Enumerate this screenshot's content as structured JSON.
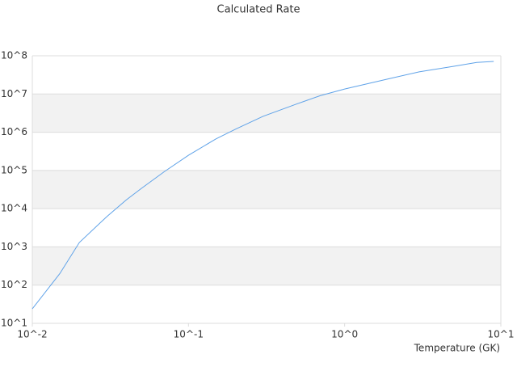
{
  "chart_data": {
    "type": "line",
    "title": "Calculated Rate",
    "x_label": "Temperature (GK)",
    "x": [
      0.01,
      0.015,
      0.02,
      0.03,
      0.04,
      0.05,
      0.07,
      0.1,
      0.15,
      0.2,
      0.3,
      0.5,
      0.7,
      1,
      2,
      3,
      5,
      7,
      9
    ],
    "series": [
      {
        "color": "#5fa2e8",
        "values": [
          24,
          200,
          1300,
          6200,
          17000,
          34000,
          93000,
          250000,
          670000,
          1200000,
          2600000,
          5600000,
          9100000,
          13500000,
          26000000,
          38000000,
          53000000,
          67000000,
          71000000
        ]
      }
    ],
    "xscale": "log",
    "yscale": "log",
    "xlim": [
      0.01,
      10
    ],
    "ylim": [
      10,
      100000000
    ],
    "xticks": [
      {
        "value": 0.01,
        "label": "10^-2"
      },
      {
        "value": 0.1,
        "label": "10^-1"
      },
      {
        "value": 1,
        "label": "10^0"
      },
      {
        "value": 10,
        "label": "10^1"
      }
    ],
    "yticks": [
      {
        "value": 10,
        "label": "10^1"
      },
      {
        "value": 100,
        "label": "10^2"
      },
      {
        "value": 1000,
        "label": "10^3"
      },
      {
        "value": 10000,
        "label": "10^4"
      },
      {
        "value": 100000,
        "label": "10^5"
      },
      {
        "value": 1000000,
        "label": "10^6"
      },
      {
        "value": 10000000,
        "label": "10^7"
      },
      {
        "value": 100000000,
        "label": "10^8"
      }
    ],
    "grid": true
  }
}
